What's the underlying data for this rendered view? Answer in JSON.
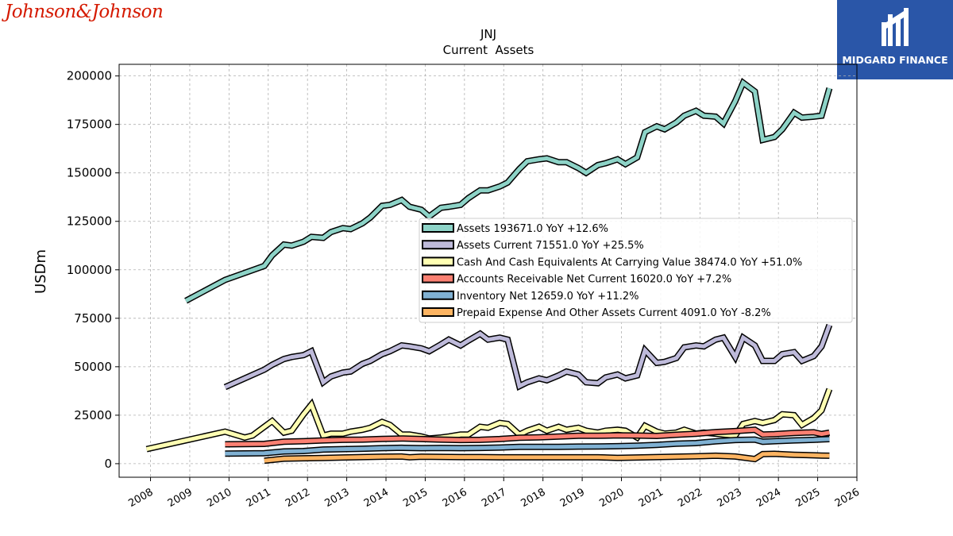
{
  "logos": {
    "left_text": "Johnson&Johnson",
    "right_text": "MIDGARD FINANCE",
    "left_color": "#d51900",
    "right_bg": "#2a56a8"
  },
  "chart_data": {
    "type": "line",
    "title": "JNJ",
    "subtitle": "Current  Assets",
    "ylabel": "USDm",
    "xlabel": "",
    "xlim": [
      2007.2,
      2026.0
    ],
    "ylim": [
      -7000,
      206000
    ],
    "grid": true,
    "legend_placement": "center-right",
    "x_ticks": [
      "2008",
      "2009",
      "2010",
      "2011",
      "2012",
      "2013",
      "2014",
      "2015",
      "2016",
      "2017",
      "2018",
      "2019",
      "2020",
      "2021",
      "2022",
      "2023",
      "2024",
      "2025",
      "2026"
    ],
    "y_ticks": [
      "0",
      "25000",
      "50000",
      "75000",
      "100000",
      "125000",
      "150000",
      "175000",
      "200000"
    ],
    "series": [
      {
        "name": "Assets",
        "legend": "Assets  193671.0 YoY +12.6%",
        "color": "#8dd3c7",
        "points": [
          [
            2008.9,
            84000
          ],
          [
            2009.9,
            94800
          ],
          [
            2010.9,
            102000
          ],
          [
            2011.1,
            107500
          ],
          [
            2011.4,
            113000
          ],
          [
            2011.6,
            112500
          ],
          [
            2011.9,
            114500
          ],
          [
            2012.1,
            117000
          ],
          [
            2012.4,
            116500
          ],
          [
            2012.6,
            119500
          ],
          [
            2012.9,
            121500
          ],
          [
            2013.1,
            121000
          ],
          [
            2013.4,
            124000
          ],
          [
            2013.6,
            127000
          ],
          [
            2013.9,
            133000
          ],
          [
            2014.1,
            133500
          ],
          [
            2014.4,
            136000
          ],
          [
            2014.6,
            132500
          ],
          [
            2014.9,
            131000
          ],
          [
            2015.1,
            127500
          ],
          [
            2015.4,
            132000
          ],
          [
            2015.6,
            132500
          ],
          [
            2015.9,
            133500
          ],
          [
            2016.1,
            137000
          ],
          [
            2016.4,
            141000
          ],
          [
            2016.6,
            141000
          ],
          [
            2016.9,
            143000
          ],
          [
            2017.1,
            145000
          ],
          [
            2017.4,
            152000
          ],
          [
            2017.6,
            156000
          ],
          [
            2017.9,
            157000
          ],
          [
            2018.1,
            157500
          ],
          [
            2018.4,
            155500
          ],
          [
            2018.6,
            155500
          ],
          [
            2018.9,
            152500
          ],
          [
            2019.1,
            150000
          ],
          [
            2019.4,
            154000
          ],
          [
            2019.6,
            155000
          ],
          [
            2019.9,
            157000
          ],
          [
            2020.1,
            154500
          ],
          [
            2020.4,
            158000
          ],
          [
            2020.6,
            171000
          ],
          [
            2020.9,
            174000
          ],
          [
            2021.1,
            172500
          ],
          [
            2021.4,
            176000
          ],
          [
            2021.6,
            179500
          ],
          [
            2021.9,
            182000
          ],
          [
            2022.1,
            179500
          ],
          [
            2022.4,
            179000
          ],
          [
            2022.6,
            175500
          ],
          [
            2022.9,
            187000
          ],
          [
            2023.1,
            196500
          ],
          [
            2023.4,
            192000
          ],
          [
            2023.6,
            167000
          ],
          [
            2023.9,
            168500
          ],
          [
            2024.1,
            172500
          ],
          [
            2024.4,
            181000
          ],
          [
            2024.6,
            178500
          ],
          [
            2024.9,
            179000
          ],
          [
            2025.1,
            179500
          ],
          [
            2025.3,
            193671
          ]
        ]
      },
      {
        "name": "Assets Current",
        "legend": "Assets Current  71551.0 YoY +25.5%",
        "color": "#bebada",
        "points": [
          [
            2009.9,
            39500
          ],
          [
            2010.4,
            44000
          ],
          [
            2010.9,
            48500
          ],
          [
            2011.1,
            51000
          ],
          [
            2011.4,
            54000
          ],
          [
            2011.6,
            55000
          ],
          [
            2011.9,
            56000
          ],
          [
            2012.1,
            58000
          ],
          [
            2012.4,
            42000
          ],
          [
            2012.6,
            45000
          ],
          [
            2012.9,
            47000
          ],
          [
            2013.1,
            47500
          ],
          [
            2013.4,
            51500
          ],
          [
            2013.6,
            53000
          ],
          [
            2013.9,
            56500
          ],
          [
            2014.1,
            58000
          ],
          [
            2014.4,
            61000
          ],
          [
            2014.6,
            60500
          ],
          [
            2014.9,
            59500
          ],
          [
            2015.1,
            58000
          ],
          [
            2015.4,
            61500
          ],
          [
            2015.6,
            64000
          ],
          [
            2015.9,
            61000
          ],
          [
            2016.1,
            63500
          ],
          [
            2016.4,
            67000
          ],
          [
            2016.6,
            64000
          ],
          [
            2016.9,
            65000
          ],
          [
            2017.1,
            64000
          ],
          [
            2017.4,
            40000
          ],
          [
            2017.6,
            42000
          ],
          [
            2017.9,
            44000
          ],
          [
            2018.1,
            43000
          ],
          [
            2018.4,
            45500
          ],
          [
            2018.6,
            47500
          ],
          [
            2018.9,
            46000
          ],
          [
            2019.1,
            42000
          ],
          [
            2019.4,
            41500
          ],
          [
            2019.6,
            44500
          ],
          [
            2019.9,
            46000
          ],
          [
            2020.1,
            44000
          ],
          [
            2020.4,
            45500
          ],
          [
            2020.6,
            58500
          ],
          [
            2020.9,
            52000
          ],
          [
            2021.1,
            52500
          ],
          [
            2021.4,
            54500
          ],
          [
            2021.6,
            60000
          ],
          [
            2021.9,
            61000
          ],
          [
            2022.1,
            60500
          ],
          [
            2022.4,
            64000
          ],
          [
            2022.6,
            65000
          ],
          [
            2022.9,
            55000
          ],
          [
            2023.1,
            65000
          ],
          [
            2023.4,
            61000
          ],
          [
            2023.6,
            53000
          ],
          [
            2023.9,
            53000
          ],
          [
            2024.1,
            56500
          ],
          [
            2024.4,
            57500
          ],
          [
            2024.6,
            53000
          ],
          [
            2024.9,
            55500
          ],
          [
            2025.1,
            60500
          ],
          [
            2025.3,
            71551
          ]
        ]
      },
      {
        "name": "Cash And Cash Equivalents At Carrying Value",
        "legend": "Cash And Cash Equivalents At Carrying Value  38474.0 YoY +51.0%",
        "color": "#ffffb3",
        "points": [
          [
            2007.9,
            7500
          ],
          [
            2008.9,
            12000
          ],
          [
            2009.9,
            16500
          ],
          [
            2010.4,
            13500
          ],
          [
            2010.6,
            14500
          ],
          [
            2010.9,
            19000
          ],
          [
            2011.1,
            22000
          ],
          [
            2011.4,
            16000
          ],
          [
            2011.6,
            17000
          ],
          [
            2011.9,
            25500
          ],
          [
            2012.1,
            30500
          ],
          [
            2012.4,
            14500
          ],
          [
            2012.6,
            15500
          ],
          [
            2012.9,
            15500
          ],
          [
            2013.1,
            16500
          ],
          [
            2013.4,
            17500
          ],
          [
            2013.6,
            18500
          ],
          [
            2013.9,
            21500
          ],
          [
            2014.1,
            20000
          ],
          [
            2014.4,
            15000
          ],
          [
            2014.6,
            15000
          ],
          [
            2014.9,
            14000
          ],
          [
            2015.1,
            13000
          ],
          [
            2015.4,
            13500
          ],
          [
            2015.6,
            14000
          ],
          [
            2015.9,
            15000
          ],
          [
            2016.1,
            15000
          ],
          [
            2016.4,
            19000
          ],
          [
            2016.6,
            18500
          ],
          [
            2016.9,
            21000
          ],
          [
            2017.1,
            20500
          ],
          [
            2017.4,
            15000
          ],
          [
            2017.6,
            17000
          ],
          [
            2017.9,
            19000
          ],
          [
            2018.1,
            17000
          ],
          [
            2018.4,
            19000
          ],
          [
            2018.6,
            17500
          ],
          [
            2018.9,
            18500
          ],
          [
            2019.1,
            17000
          ],
          [
            2019.4,
            16000
          ],
          [
            2019.6,
            17000
          ],
          [
            2019.9,
            17500
          ],
          [
            2020.1,
            17000
          ],
          [
            2020.4,
            13500
          ],
          [
            2020.6,
            19500
          ],
          [
            2020.9,
            16500
          ],
          [
            2021.1,
            15500
          ],
          [
            2021.4,
            16000
          ],
          [
            2021.6,
            17500
          ],
          [
            2021.9,
            15500
          ],
          [
            2022.1,
            16000
          ],
          [
            2022.4,
            15500
          ],
          [
            2022.6,
            15000
          ],
          [
            2022.9,
            14500
          ],
          [
            2023.1,
            20500
          ],
          [
            2023.4,
            22000
          ],
          [
            2023.6,
            21000
          ],
          [
            2023.9,
            22500
          ],
          [
            2024.1,
            25500
          ],
          [
            2024.4,
            25000
          ],
          [
            2024.6,
            20000
          ],
          [
            2024.9,
            23500
          ],
          [
            2025.1,
            27500
          ],
          [
            2025.3,
            38474
          ]
        ]
      },
      {
        "name": "Accounts Receivable Net Current",
        "legend": "Accounts Receivable Net Current  16020.0 YoY +7.2%",
        "color": "#fb8072",
        "points": [
          [
            2009.9,
            10000
          ],
          [
            2010.9,
            10200
          ],
          [
            2011.4,
            11300
          ],
          [
            2011.9,
            11600
          ],
          [
            2012.4,
            12000
          ],
          [
            2012.9,
            12300
          ],
          [
            2013.4,
            12400
          ],
          [
            2013.9,
            12800
          ],
          [
            2014.4,
            13000
          ],
          [
            2014.9,
            12700
          ],
          [
            2015.4,
            12400
          ],
          [
            2015.9,
            12200
          ],
          [
            2016.4,
            12300
          ],
          [
            2016.9,
            12700
          ],
          [
            2017.4,
            13400
          ],
          [
            2017.9,
            13600
          ],
          [
            2018.4,
            14000
          ],
          [
            2018.9,
            14400
          ],
          [
            2019.4,
            14400
          ],
          [
            2019.9,
            14600
          ],
          [
            2020.4,
            14500
          ],
          [
            2020.9,
            14300
          ],
          [
            2021.4,
            14900
          ],
          [
            2021.9,
            15400
          ],
          [
            2022.4,
            16300
          ],
          [
            2022.9,
            16800
          ],
          [
            2023.4,
            17500
          ],
          [
            2023.6,
            15000
          ],
          [
            2023.9,
            15200
          ],
          [
            2024.4,
            15800
          ],
          [
            2024.9,
            16200
          ],
          [
            2025.1,
            15300
          ],
          [
            2025.3,
            16020
          ]
        ]
      },
      {
        "name": "Inventory Net",
        "legend": "Inventory Net  12659.0 YoY +11.2%",
        "color": "#80b1d3",
        "points": [
          [
            2009.9,
            5200
          ],
          [
            2010.9,
            5400
          ],
          [
            2011.4,
            6300
          ],
          [
            2011.9,
            6500
          ],
          [
            2012.4,
            7300
          ],
          [
            2012.9,
            7500
          ],
          [
            2013.4,
            7700
          ],
          [
            2013.9,
            8000
          ],
          [
            2014.4,
            8200
          ],
          [
            2014.9,
            8000
          ],
          [
            2015.4,
            8100
          ],
          [
            2015.9,
            8000
          ],
          [
            2016.4,
            8100
          ],
          [
            2016.9,
            8300
          ],
          [
            2017.4,
            8700
          ],
          [
            2017.9,
            8700
          ],
          [
            2018.4,
            8700
          ],
          [
            2018.9,
            8800
          ],
          [
            2019.4,
            8900
          ],
          [
            2019.9,
            9000
          ],
          [
            2020.4,
            9300
          ],
          [
            2020.9,
            9700
          ],
          [
            2021.4,
            10300
          ],
          [
            2021.9,
            10600
          ],
          [
            2022.4,
            11500
          ],
          [
            2022.9,
            12200
          ],
          [
            2023.4,
            12400
          ],
          [
            2023.6,
            11300
          ],
          [
            2023.9,
            11600
          ],
          [
            2024.4,
            12000
          ],
          [
            2024.9,
            12300
          ],
          [
            2025.1,
            12500
          ],
          [
            2025.3,
            12659
          ]
        ]
      },
      {
        "name": "Prepaid Expense And Other Assets Current",
        "legend": "Prepaid Expense And Other Assets Current  4091.0 YoY -8.2%",
        "color": "#fdb462",
        "points": [
          [
            2010.9,
            1500
          ],
          [
            2011.4,
            2600
          ],
          [
            2011.9,
            2800
          ],
          [
            2012.4,
            2900
          ],
          [
            2012.9,
            3200
          ],
          [
            2013.4,
            3400
          ],
          [
            2013.9,
            3600
          ],
          [
            2014.4,
            3700
          ],
          [
            2014.6,
            3300
          ],
          [
            2014.9,
            3600
          ],
          [
            2015.4,
            3500
          ],
          [
            2015.9,
            3400
          ],
          [
            2016.4,
            3400
          ],
          [
            2016.9,
            3300
          ],
          [
            2017.4,
            3300
          ],
          [
            2017.9,
            3300
          ],
          [
            2018.4,
            3300
          ],
          [
            2018.9,
            3300
          ],
          [
            2019.4,
            3300
          ],
          [
            2019.9,
            3000
          ],
          [
            2020.4,
            3200
          ],
          [
            2020.9,
            3400
          ],
          [
            2021.4,
            3600
          ],
          [
            2021.9,
            3800
          ],
          [
            2022.4,
            4100
          ],
          [
            2022.9,
            3700
          ],
          [
            2023.4,
            2400
          ],
          [
            2023.6,
            4900
          ],
          [
            2023.9,
            5100
          ],
          [
            2024.4,
            4600
          ],
          [
            2024.9,
            4300
          ],
          [
            2025.1,
            4200
          ],
          [
            2025.3,
            4091
          ]
        ]
      }
    ]
  }
}
